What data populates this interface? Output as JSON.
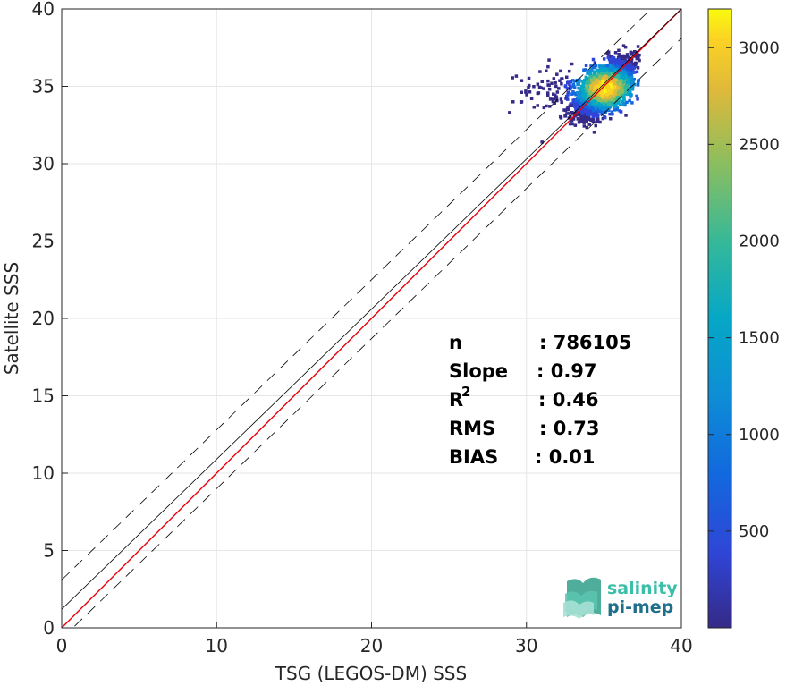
{
  "chart_data": {
    "type": "heatmap",
    "xlabel": "TSG (LEGOS-DM) SSS",
    "ylabel": "Satellite SSS",
    "xlim": [
      0,
      40
    ],
    "ylim": [
      0,
      40
    ],
    "x_ticks": [
      0,
      10,
      20,
      30,
      40
    ],
    "y_ticks": [
      0,
      5,
      10,
      15,
      20,
      25,
      30,
      35,
      40
    ],
    "grid": true,
    "reference_lines": [
      {
        "kind": "identity",
        "slope": 1,
        "intercept": 0,
        "color": "#e8000b",
        "style": "solid"
      },
      {
        "kind": "fit",
        "slope": 0.97,
        "intercept": 1.2,
        "color": "#000000",
        "style": "solid"
      },
      {
        "kind": "fit-plus",
        "slope": 0.97,
        "intercept": 3.1,
        "color": "#000000",
        "style": "dashed"
      },
      {
        "kind": "fit-minus",
        "slope": 0.97,
        "intercept": -0.7,
        "color": "#000000",
        "style": "dashed"
      }
    ],
    "density_center": [
      35,
      35
    ],
    "density_peak": 3200,
    "colorbar": {
      "min": 0,
      "max": 3200,
      "ticks": [
        500,
        1000,
        1500,
        2000,
        2500,
        3000
      ],
      "colormap": "parula"
    },
    "stats": [
      {
        "label": "n",
        "value": ": 786105"
      },
      {
        "label": "Slope",
        "value": ": 0.97"
      },
      {
        "label": "R",
        "sup": "2",
        "value": ": 0.46"
      },
      {
        "label": "RMS",
        "value": ": 0.73"
      },
      {
        "label": "BIAS",
        "value": ": 0.01"
      }
    ]
  },
  "logo": {
    "line1": "salinity",
    "line2": "pi-mep",
    "color1": "#3bbfa8",
    "color2": "#1f6f8b"
  }
}
